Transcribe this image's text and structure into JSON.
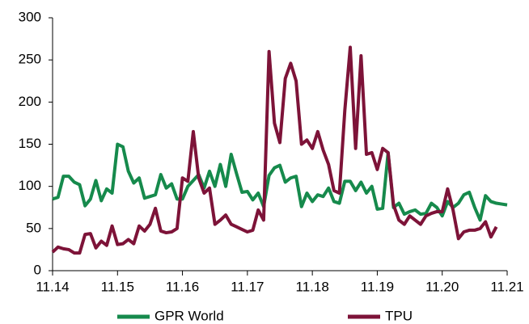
{
  "chart_data": {
    "type": "line",
    "categories": [
      "11.14",
      null,
      null,
      null,
      null,
      null,
      null,
      null,
      null,
      null,
      null,
      null,
      "11.15",
      null,
      null,
      null,
      null,
      null,
      null,
      null,
      null,
      null,
      null,
      null,
      "11.16",
      null,
      null,
      null,
      null,
      null,
      null,
      null,
      null,
      null,
      null,
      null,
      "11.17",
      null,
      null,
      null,
      null,
      null,
      null,
      null,
      null,
      null,
      null,
      null,
      "11.18",
      null,
      null,
      null,
      null,
      null,
      null,
      null,
      null,
      null,
      null,
      null,
      "11.19",
      null,
      null,
      null,
      null,
      null,
      null,
      null,
      null,
      null,
      null,
      null,
      "11.20",
      null,
      null,
      null,
      null,
      null,
      null,
      null,
      null,
      null,
      null,
      null,
      "11.21"
    ],
    "series": [
      {
        "name": "GPR World",
        "color": "#168a4c",
        "values": [
          85,
          87,
          112,
          112,
          105,
          102,
          77,
          85,
          107,
          83,
          97,
          92,
          150,
          147,
          118,
          104,
          110,
          86,
          88,
          90,
          114,
          98,
          103,
          85,
          85,
          100,
          107,
          114,
          98,
          118,
          100,
          126,
          100,
          138,
          115,
          93,
          94,
          84,
          92,
          76,
          113,
          122,
          125,
          105,
          110,
          112,
          76,
          92,
          82,
          90,
          88,
          98,
          82,
          80,
          106,
          106,
          95,
          105,
          92,
          100,
          73,
          74,
          140,
          75,
          80,
          67,
          70,
          72,
          67,
          68,
          80,
          75,
          65,
          82,
          75,
          80,
          90,
          93,
          75,
          60,
          89,
          82,
          80,
          79,
          78
        ]
      },
      {
        "name": "TPU",
        "color": "#7d1338",
        "values": [
          22,
          28,
          26,
          25,
          21,
          21,
          43,
          44,
          27,
          35,
          30,
          53,
          31,
          32,
          37,
          32,
          53,
          47,
          55,
          74,
          47,
          45,
          46,
          50,
          110,
          106,
          165,
          110,
          92,
          98,
          55,
          60,
          66,
          55,
          52,
          49,
          46,
          48,
          72,
          60,
          260,
          175,
          152,
          228,
          246,
          225,
          150,
          155,
          145,
          165,
          143,
          126,
          95,
          92,
          190,
          265,
          145,
          255,
          138,
          140,
          120,
          145,
          140,
          78,
          60,
          55,
          65,
          60,
          55,
          65,
          68,
          70,
          70,
          97,
          72,
          38,
          46,
          48,
          48,
          50,
          58,
          40,
          52,
          null,
          null
        ]
      }
    ],
    "ylim": [
      0,
      300
    ],
    "yticks": [
      0,
      50,
      100,
      150,
      200,
      250,
      300
    ],
    "legend": "bottom"
  }
}
